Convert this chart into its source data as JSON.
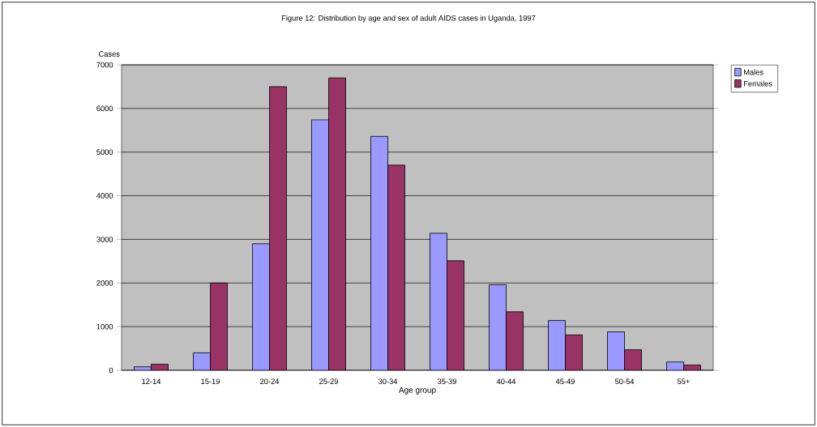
{
  "chart_data": {
    "type": "bar",
    "title": "Figure 12: Distribution by age and sex of adult AIDS cases in Uganda, 1997",
    "xlabel": "Age group",
    "ylabel": "Cases",
    "categories": [
      "12-14",
      "15-19",
      "20-24",
      "25-29",
      "30-34",
      "35-39",
      "40-44",
      "45-49",
      "50-54",
      "55+"
    ],
    "series": [
      {
        "name": "Males",
        "color": "#9999ff",
        "values": [
          80,
          400,
          2900,
          5740,
          5360,
          3140,
          1960,
          1140,
          880,
          190
        ]
      },
      {
        "name": "Females",
        "color": "#993366",
        "values": [
          140,
          2000,
          6500,
          6700,
          4700,
          2510,
          1340,
          810,
          470,
          120
        ]
      }
    ],
    "ylim": [
      0,
      7000
    ],
    "yticks": [
      0,
      1000,
      2000,
      3000,
      4000,
      5000,
      6000,
      7000
    ],
    "grid": "y",
    "legend": "top right"
  }
}
